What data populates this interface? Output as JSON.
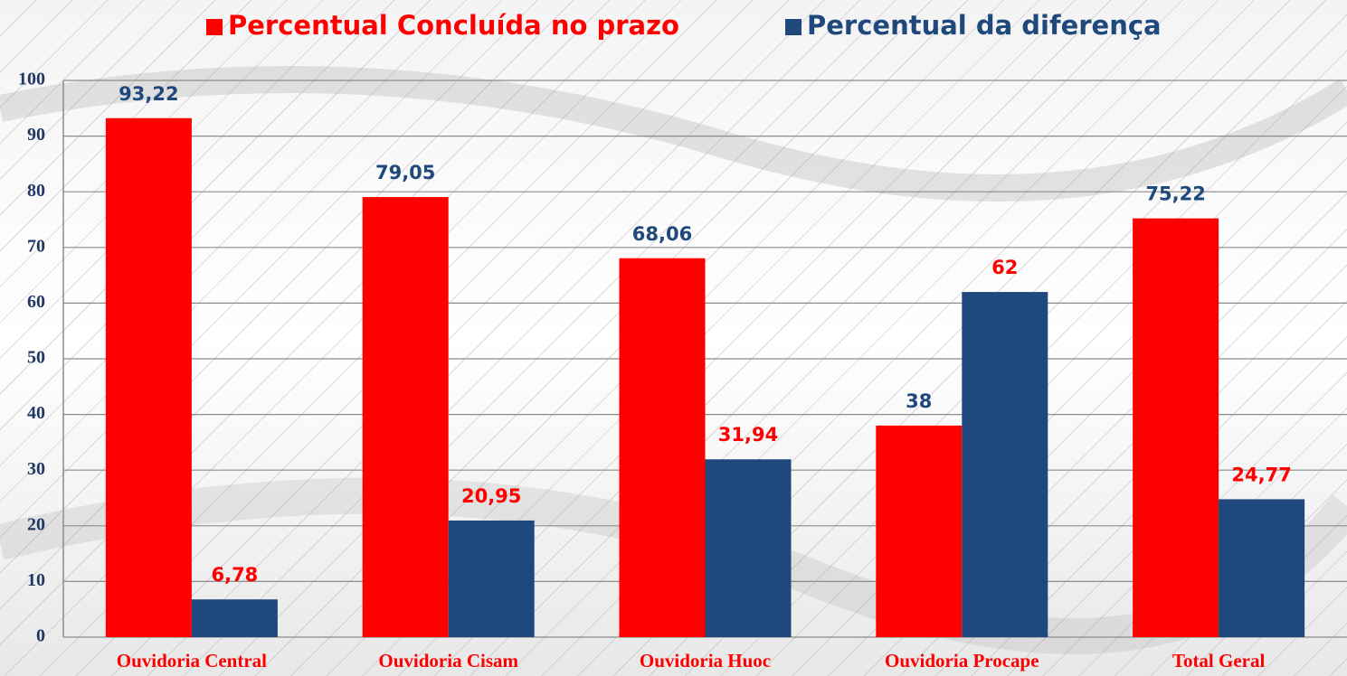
{
  "chart_data": {
    "type": "bar",
    "categories": [
      "Ouvidoria Central",
      "Ouvidoria Cisam",
      "Ouvidoria Huoc",
      "Ouvidoria Procape",
      "Total Geral"
    ],
    "series": [
      {
        "name": "Percentual Concluída no prazo",
        "color": "#ff0000",
        "values": [
          93.22,
          79.05,
          68.06,
          38,
          75.22
        ],
        "value_labels": [
          "93,22",
          "79,05",
          "68,06",
          "38",
          "75,22"
        ]
      },
      {
        "name": "Percentual da diferença",
        "color": "#1f497d",
        "values": [
          6.78,
          20.95,
          31.94,
          62,
          24.77
        ],
        "value_labels": [
          "6,78",
          "20,95",
          "31,94",
          "62",
          "24,77"
        ]
      }
    ],
    "ylim": [
      0,
      100
    ],
    "yticks": [
      0,
      10,
      20,
      30,
      40,
      50,
      60,
      70,
      80,
      90,
      100
    ],
    "grid": true,
    "legend": "top"
  }
}
